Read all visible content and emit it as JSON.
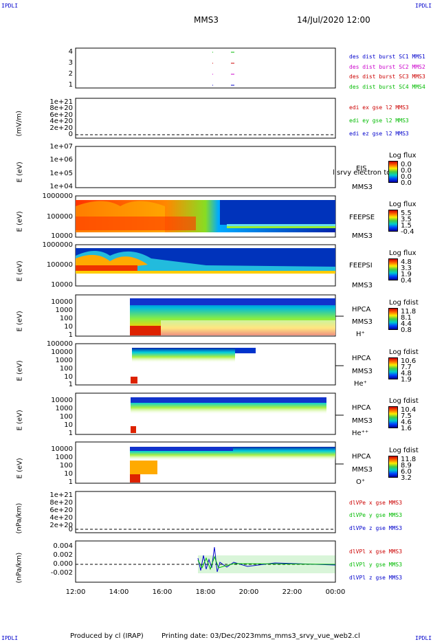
{
  "header": {
    "corner_tl": "IPDLI",
    "corner_tr": "IPDLI",
    "corner_bl": "IPDLI",
    "corner_br": "IPDLI",
    "title": "MMS3",
    "datetime": "14/Jul/2020 12:00"
  },
  "footer": {
    "producer": "Produced by cl (IRAP)",
    "printing": "Printing date: 03/Dec/2023",
    "script": "mms_mms3_srvy_vue_web2.cl"
  },
  "x_axis": {
    "ticks": [
      "12:00",
      "14:00",
      "16:00",
      "18:00",
      "20:00",
      "22:00",
      "00:00"
    ]
  },
  "panels": {
    "burst": {
      "ticks": [
        "4",
        "3",
        "2",
        "1"
      ],
      "legend": [
        {
          "text": "des dist burst SC1 MMS1",
          "color": "#0000cc"
        },
        {
          "text": "des dist burst SC2 MMS2",
          "color": "#cc00cc"
        },
        {
          "text": "des dist burst SC3 MMS3",
          "color": "#cc0000"
        },
        {
          "text": "des dist burst SC4 MMS4",
          "color": "#00bb00"
        }
      ]
    },
    "edi": {
      "ylabel": "(mV/m)",
      "ticks": [
        "1e+21",
        "8e+20",
        "6e+20",
        "4e+20",
        "2e+20",
        "0"
      ],
      "legend": [
        {
          "text": "edi ex gse l2 MMS3",
          "color": "#cc0000"
        },
        {
          "text": "edi ey gse l2 MMS3",
          "color": "#00bb00"
        },
        {
          "text": "edi ez gse l2 MMS3",
          "color": "#0000cc"
        }
      ]
    },
    "eis": {
      "ylabel": "E (eV)",
      "ticks": [
        "1e+07",
        "1e+06",
        "1e+05",
        "1e+04"
      ],
      "label1": "EIS",
      "label2": "MMS3",
      "overlay": "l srvy electron to",
      "cb_title": "Log flux",
      "cb_values": [
        "0.0",
        "0.0",
        "0.0",
        "0.0"
      ]
    },
    "feepse": {
      "ylabel": "E (eV)",
      "ticks": [
        "1000000",
        "100000",
        "10000"
      ],
      "label1": "FEEPSE",
      "label2": "MMS3",
      "cb_title": "Log flux",
      "cb_values": [
        "5.5",
        "3.5",
        "1.5",
        "-0.4"
      ]
    },
    "feepsi": {
      "ylabel": "E (eV)",
      "ticks": [
        "1000000",
        "100000",
        "10000"
      ],
      "label1": "FEEPSI",
      "label2": "MMS3",
      "cb_title": "Log flux",
      "cb_values": [
        "4.8",
        "3.3",
        "1.9",
        "0.4"
      ]
    },
    "hpca_h": {
      "ylabel": "E (eV)",
      "ticks": [
        "10000",
        "1000",
        "100",
        "10",
        "1"
      ],
      "label1": "HPCA",
      "label2": "MMS3",
      "species": "H⁺",
      "cb_title": "Log fdist",
      "cb_values": [
        "11.8",
        "8.1",
        "4.4",
        "0.8"
      ]
    },
    "hpca_he": {
      "ylabel": "E (eV)",
      "ticks": [
        "100000",
        "10000",
        "1000",
        "100",
        "10",
        "1"
      ],
      "label1": "HPCA",
      "label2": "MMS3",
      "species": "He⁺",
      "cb_title": "Log fdist",
      "cb_values": [
        "10.6",
        "7.7",
        "4.8",
        "1.9"
      ]
    },
    "hpca_hepp": {
      "ylabel": "E (eV)",
      "ticks": [
        "10000",
        "1000",
        "100",
        "10",
        "1"
      ],
      "label1": "HPCA",
      "label2": "MMS3",
      "species": "He⁺⁺",
      "cb_title": "Log fdist",
      "cb_values": [
        "10.4",
        "7.5",
        "4.6",
        "1.6"
      ]
    },
    "hpca_o": {
      "ylabel": "E (eV)",
      "ticks": [
        "10000",
        "1000",
        "100",
        "10",
        "1"
      ],
      "label1": "HPCA",
      "label2": "MMS3",
      "species": "O⁺",
      "cb_title": "Log fdist",
      "cb_values": [
        "11.8",
        "8.9",
        "6.0",
        "3.2"
      ]
    },
    "divpe": {
      "ylabel": "(nPa/km)",
      "ticks": [
        "1e+21",
        "8e+20",
        "6e+20",
        "4e+20",
        "2e+20",
        "0"
      ],
      "legend": [
        {
          "text": "dlVPe x gse MMS3",
          "color": "#cc0000"
        },
        {
          "text": "dlVPe y gse MMS3",
          "color": "#00bb00"
        },
        {
          "text": "dlVPe z gse MMS3",
          "color": "#0000cc"
        }
      ]
    },
    "divpi": {
      "ylabel": "(nPa/km)",
      "ticks": [
        "0.004",
        "0.002",
        "0.000",
        "-0.002"
      ],
      "legend": [
        {
          "text": "dlVPl x gse MMS3",
          "color": "#cc0000"
        },
        {
          "text": "dlVPl y gse MMS3",
          "color": "#00bb00"
        },
        {
          "text": "dlVPl z gse MMS3",
          "color": "#0000cc"
        }
      ]
    }
  },
  "chart_data": [
    {
      "type": "scatter",
      "title": "des dist burst",
      "x": [
        "18:30",
        "19:10"
      ],
      "series": [
        {
          "name": "des dist burst SC1 MMS1",
          "values": [
            1,
            1
          ]
        },
        {
          "name": "des dist burst SC2 MMS2",
          "values": [
            2,
            2
          ]
        },
        {
          "name": "des dist burst SC3 MMS3",
          "values": [
            3,
            3
          ]
        },
        {
          "name": "des dist burst SC4 MMS4",
          "values": [
            4,
            4
          ]
        }
      ],
      "ylim": [
        0.5,
        4.5
      ]
    },
    {
      "type": "line",
      "ylabel": "(mV/m)",
      "series": [
        {
          "name": "edi ex gse l2 MMS3",
          "values": []
        },
        {
          "name": "edi ey gse l2 MMS3",
          "values": []
        },
        {
          "name": "edi ez gse l2 MMS3",
          "values": []
        }
      ],
      "ylim": [
        0,
        1e+21
      ]
    },
    {
      "type": "heatmap",
      "ylabel": "E (eV)",
      "xlim": [
        "12:00",
        "00:00"
      ],
      "ylim": [
        10000,
        1000000
      ],
      "note": "FEEPSE"
    },
    {
      "type": "heatmap",
      "ylabel": "E (eV)",
      "xlim": [
        "12:00",
        "00:00"
      ],
      "ylim": [
        10000,
        1000000
      ],
      "note": "FEEPSI"
    },
    {
      "type": "heatmap",
      "ylabel": "E (eV)",
      "data_start": "14:35",
      "ylim": [
        1,
        10000
      ]
    },
    {
      "type": "line",
      "ylabel": "(nPa/km)",
      "x_start": "17:40",
      "ylim": [
        -0.003,
        0.005
      ],
      "series": [
        {
          "name": "dlVPl x gse MMS3",
          "values": []
        },
        {
          "name": "dlVPl y gse MMS3",
          "values": []
        },
        {
          "name": "dlVPl z gse MMS3",
          "values": []
        }
      ]
    }
  ]
}
